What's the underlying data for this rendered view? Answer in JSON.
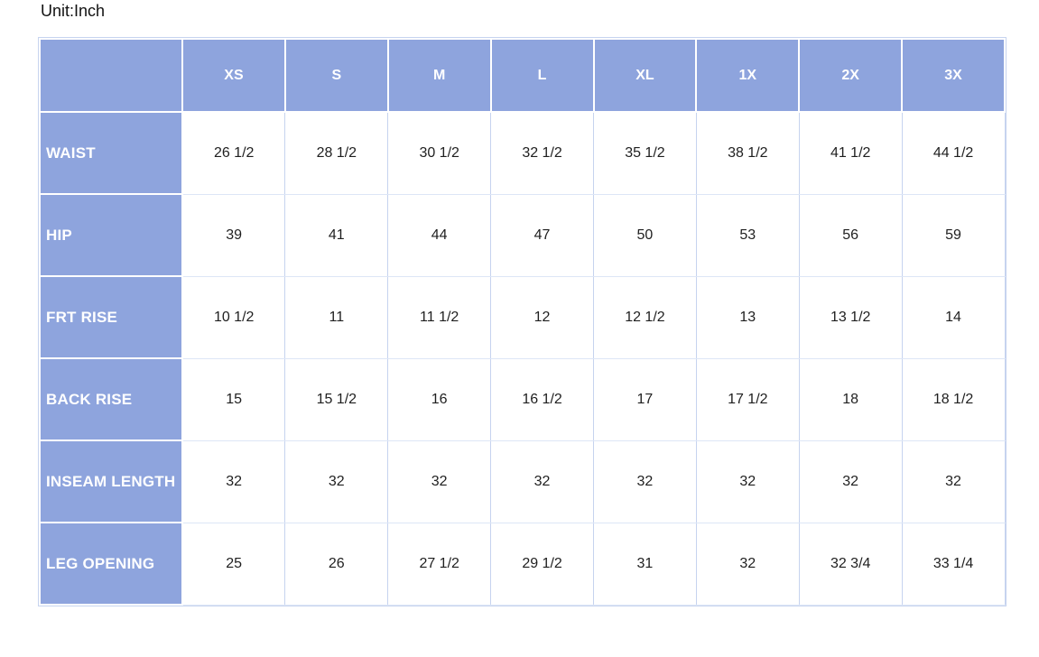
{
  "unit_label": "Unit:Inch",
  "chart_data": {
    "type": "table",
    "title": "Unit:Inch",
    "columns": [
      "XS",
      "S",
      "M",
      "L",
      "XL",
      "1X",
      "2X",
      "3X"
    ],
    "rows": [
      {
        "label": "WAIST",
        "values": [
          "26 1/2",
          "28 1/2",
          "30 1/2",
          "32 1/2",
          "35 1/2",
          "38 1/2",
          "41 1/2",
          "44 1/2"
        ]
      },
      {
        "label": "HIP",
        "values": [
          "39",
          "41",
          "44",
          "47",
          "50",
          "53",
          "56",
          "59"
        ]
      },
      {
        "label": "FRT RISE",
        "values": [
          "10 1/2",
          "11",
          "11 1/2",
          "12",
          "12 1/2",
          "13",
          "13 1/2",
          "14"
        ]
      },
      {
        "label": "BACK RISE",
        "values": [
          "15",
          "15 1/2",
          "16",
          "16 1/2",
          "17",
          "17 1/2",
          "18",
          "18 1/2"
        ]
      },
      {
        "label": "INSEAM LENGTH",
        "values": [
          "32",
          "32",
          "32",
          "32",
          "32",
          "32",
          "32",
          "32"
        ]
      },
      {
        "label": "LEG OPENING",
        "values": [
          "25",
          "26",
          "27 1/2",
          "29 1/2",
          "31",
          "32",
          "32 3/4",
          "33 1/4"
        ]
      }
    ]
  },
  "colors": {
    "header_bg": "#8EA4DD",
    "header_text": "#FFFFFF",
    "outer_border": "#C7D4EF",
    "grid_vertical": "#C6D3EF",
    "grid_horizontal": "#DDE6F6",
    "data_text": "#1F1F1F"
  }
}
